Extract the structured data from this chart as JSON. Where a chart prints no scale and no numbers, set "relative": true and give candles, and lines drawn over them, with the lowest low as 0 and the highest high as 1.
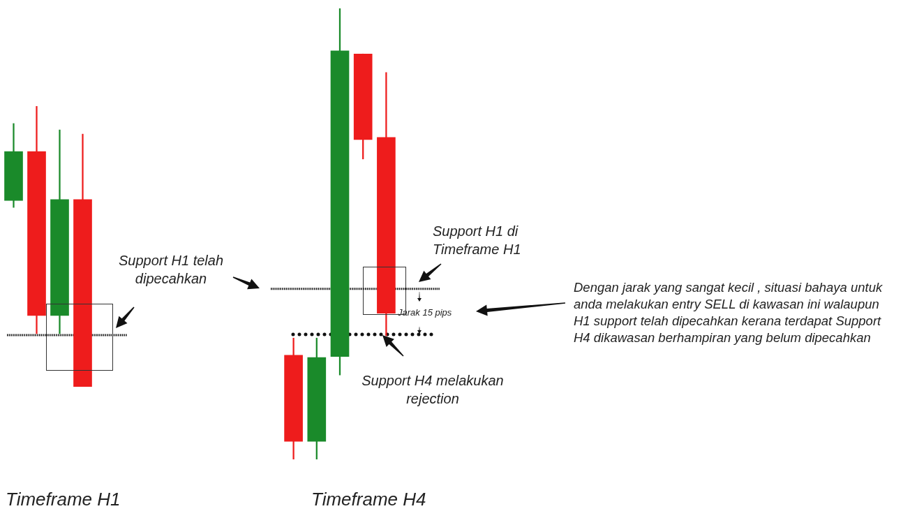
{
  "chart_data": [
    {
      "type": "candlestick",
      "title": "Timeframe H1",
      "relative": true,
      "categories": [
        null,
        null,
        null,
        null
      ],
      "ohlc": [
        [
          0.664,
          0.938,
          0.639,
          0.838
        ],
        [
          0.838,
          1,
          0.189,
          0.254
        ],
        [
          0.254,
          0.915,
          0.189,
          0.667
        ],
        [
          0.667,
          0.9,
          0,
          0
        ]
      ],
      "colors": [
        "#1a8a2a",
        "#ee1c1c",
        "#1a8a2a",
        "#ee1c1c"
      ],
      "ref_lines": [
        {
          "axis": "y",
          "value": 0.184,
          "line_style": "dotted"
        }
      ]
    },
    {
      "type": "candlestick",
      "title": "Timeframe H4",
      "relative": true,
      "categories": [
        null,
        null,
        null,
        null,
        null
      ],
      "ohlc": [
        [
          0.231,
          0.269,
          0,
          0.04
        ],
        [
          0.04,
          0.269,
          0,
          0.226
        ],
        [
          0.228,
          1,
          0.187,
          0.906
        ],
        [
          0.899,
          0.899,
          0.666,
          0.709
        ],
        [
          0.714,
          0.858,
          0.274,
          0.324
        ]
      ],
      "colors": [
        "#ee1c1c",
        "#1a8a2a",
        "#1a8a2a",
        "#ee1c1c",
        "#ee1c1c"
      ],
      "ref_lines": [
        {
          "axis": "y",
          "value": 0.378,
          "line_style": "dotted"
        },
        {
          "axis": "y",
          "value": 0.277,
          "line_style": "dotted"
        }
      ],
      "annotations": [
        "Support H1 telah dipecahkan",
        "Support H1 di Timeframe H1",
        "Jarak 15 pips",
        "Support H4 melakukan rejection",
        "Dengan jarak yang sangat kecil , situasi bahaya untuk anda melakukan entry SELL di kawasan ini walaupun H1 support telah dipecahkan kerana terdapat Support H4 dikawasan berhampiran yang belum dipecahkan"
      ]
    }
  ]
}
